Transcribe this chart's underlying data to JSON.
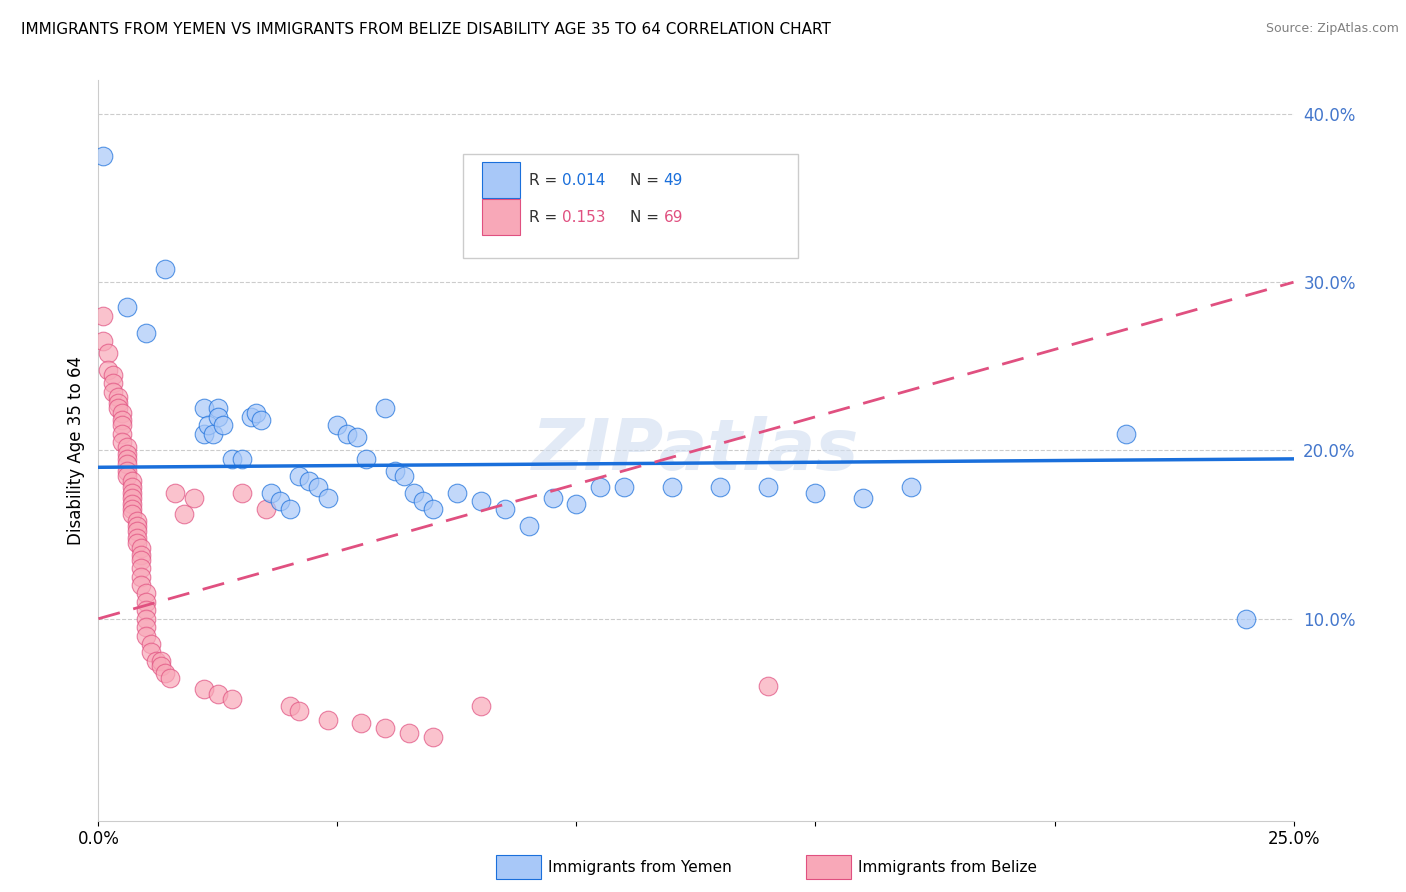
{
  "title": "IMMIGRANTS FROM YEMEN VS IMMIGRANTS FROM BELIZE DISABILITY AGE 35 TO 64 CORRELATION CHART",
  "source": "Source: ZipAtlas.com",
  "ylabel": "Disability Age 35 to 64",
  "xlim": [
    0.0,
    0.25
  ],
  "ylim": [
    -0.02,
    0.42
  ],
  "color_yemen": "#a8c8f8",
  "color_belize": "#f8a8b8",
  "line_color_yemen": "#1a6fdb",
  "line_color_belize": "#e05080",
  "watermark": "ZIPatlas",
  "scatter_yemen": [
    [
      0.001,
      0.375
    ],
    [
      0.006,
      0.285
    ],
    [
      0.01,
      0.27
    ],
    [
      0.014,
      0.308
    ],
    [
      0.022,
      0.225
    ],
    [
      0.022,
      0.21
    ],
    [
      0.023,
      0.215
    ],
    [
      0.024,
      0.21
    ],
    [
      0.025,
      0.225
    ],
    [
      0.025,
      0.22
    ],
    [
      0.026,
      0.215
    ],
    [
      0.028,
      0.195
    ],
    [
      0.03,
      0.195
    ],
    [
      0.032,
      0.22
    ],
    [
      0.033,
      0.222
    ],
    [
      0.034,
      0.218
    ],
    [
      0.036,
      0.175
    ],
    [
      0.038,
      0.17
    ],
    [
      0.04,
      0.165
    ],
    [
      0.042,
      0.185
    ],
    [
      0.044,
      0.182
    ],
    [
      0.046,
      0.178
    ],
    [
      0.048,
      0.172
    ],
    [
      0.05,
      0.215
    ],
    [
      0.052,
      0.21
    ],
    [
      0.054,
      0.208
    ],
    [
      0.056,
      0.195
    ],
    [
      0.06,
      0.225
    ],
    [
      0.062,
      0.188
    ],
    [
      0.064,
      0.185
    ],
    [
      0.066,
      0.175
    ],
    [
      0.068,
      0.17
    ],
    [
      0.07,
      0.165
    ],
    [
      0.075,
      0.175
    ],
    [
      0.08,
      0.17
    ],
    [
      0.085,
      0.165
    ],
    [
      0.09,
      0.155
    ],
    [
      0.095,
      0.172
    ],
    [
      0.1,
      0.168
    ],
    [
      0.105,
      0.178
    ],
    [
      0.11,
      0.178
    ],
    [
      0.12,
      0.178
    ],
    [
      0.13,
      0.178
    ],
    [
      0.14,
      0.178
    ],
    [
      0.15,
      0.175
    ],
    [
      0.16,
      0.172
    ],
    [
      0.17,
      0.178
    ],
    [
      0.215,
      0.21
    ],
    [
      0.24,
      0.1
    ]
  ],
  "scatter_belize": [
    [
      0.001,
      0.28
    ],
    [
      0.001,
      0.265
    ],
    [
      0.002,
      0.258
    ],
    [
      0.002,
      0.248
    ],
    [
      0.003,
      0.245
    ],
    [
      0.003,
      0.24
    ],
    [
      0.003,
      0.235
    ],
    [
      0.004,
      0.232
    ],
    [
      0.004,
      0.228
    ],
    [
      0.004,
      0.225
    ],
    [
      0.005,
      0.222
    ],
    [
      0.005,
      0.218
    ],
    [
      0.005,
      0.215
    ],
    [
      0.005,
      0.21
    ],
    [
      0.005,
      0.205
    ],
    [
      0.006,
      0.202
    ],
    [
      0.006,
      0.198
    ],
    [
      0.006,
      0.195
    ],
    [
      0.006,
      0.192
    ],
    [
      0.006,
      0.188
    ],
    [
      0.006,
      0.185
    ],
    [
      0.007,
      0.182
    ],
    [
      0.007,
      0.178
    ],
    [
      0.007,
      0.175
    ],
    [
      0.007,
      0.172
    ],
    [
      0.007,
      0.168
    ],
    [
      0.007,
      0.165
    ],
    [
      0.007,
      0.162
    ],
    [
      0.008,
      0.158
    ],
    [
      0.008,
      0.155
    ],
    [
      0.008,
      0.152
    ],
    [
      0.008,
      0.148
    ],
    [
      0.008,
      0.145
    ],
    [
      0.009,
      0.142
    ],
    [
      0.009,
      0.138
    ],
    [
      0.009,
      0.135
    ],
    [
      0.009,
      0.13
    ],
    [
      0.009,
      0.125
    ],
    [
      0.009,
      0.12
    ],
    [
      0.01,
      0.115
    ],
    [
      0.01,
      0.11
    ],
    [
      0.01,
      0.105
    ],
    [
      0.01,
      0.1
    ],
    [
      0.01,
      0.095
    ],
    [
      0.01,
      0.09
    ],
    [
      0.011,
      0.085
    ],
    [
      0.011,
      0.08
    ],
    [
      0.012,
      0.075
    ],
    [
      0.013,
      0.075
    ],
    [
      0.013,
      0.072
    ],
    [
      0.014,
      0.068
    ],
    [
      0.015,
      0.065
    ],
    [
      0.016,
      0.175
    ],
    [
      0.018,
      0.162
    ],
    [
      0.02,
      0.172
    ],
    [
      0.022,
      0.058
    ],
    [
      0.025,
      0.055
    ],
    [
      0.028,
      0.052
    ],
    [
      0.03,
      0.175
    ],
    [
      0.035,
      0.165
    ],
    [
      0.04,
      0.048
    ],
    [
      0.042,
      0.045
    ],
    [
      0.048,
      0.04
    ],
    [
      0.055,
      0.038
    ],
    [
      0.06,
      0.035
    ],
    [
      0.065,
      0.032
    ],
    [
      0.07,
      0.03
    ],
    [
      0.08,
      0.048
    ],
    [
      0.14,
      0.06
    ]
  ]
}
